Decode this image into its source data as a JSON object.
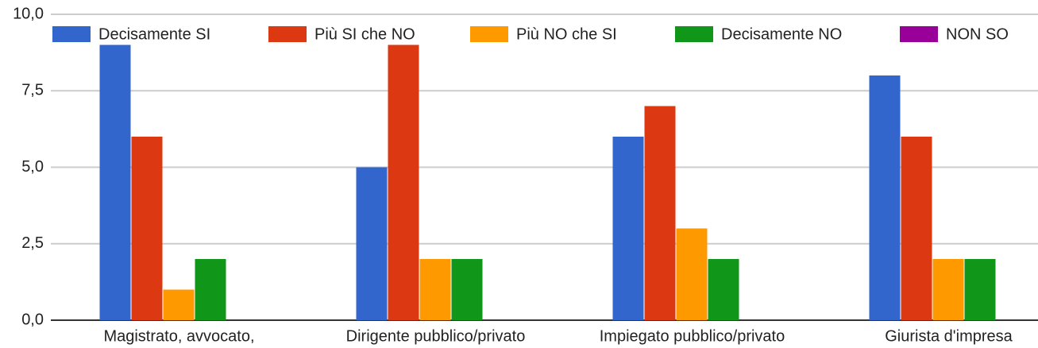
{
  "chart_data": {
    "type": "bar",
    "categories": [
      "Magistrato, avvocato,",
      "Dirigente pubblico/privato",
      "Impiegato pubblico/privato",
      "Giurista d'impresa"
    ],
    "series": [
      {
        "name": "Decisamente SI",
        "color": "#3366cc",
        "values": [
          9,
          5,
          6,
          8
        ]
      },
      {
        "name": "Più SI che NO",
        "color": "#dc3912",
        "values": [
          6,
          9,
          7,
          6
        ]
      },
      {
        "name": "Più NO che SI",
        "color": "#ff9900",
        "values": [
          1,
          2,
          3,
          2
        ]
      },
      {
        "name": "Decisamente NO",
        "color": "#109618",
        "values": [
          2,
          2,
          2,
          2
        ]
      },
      {
        "name": "NON SO",
        "color": "#990099",
        "values": [
          0,
          0,
          0,
          0
        ]
      }
    ],
    "ylim": [
      0,
      10
    ],
    "yticks": [
      {
        "value": 0,
        "label": "0,0"
      },
      {
        "value": 2.5,
        "label": "2,5"
      },
      {
        "value": 5,
        "label": "5,0"
      },
      {
        "value": 7.5,
        "label": "7,5"
      },
      {
        "value": 10,
        "label": "10,0"
      }
    ],
    "grid": true,
    "legend": "top"
  }
}
